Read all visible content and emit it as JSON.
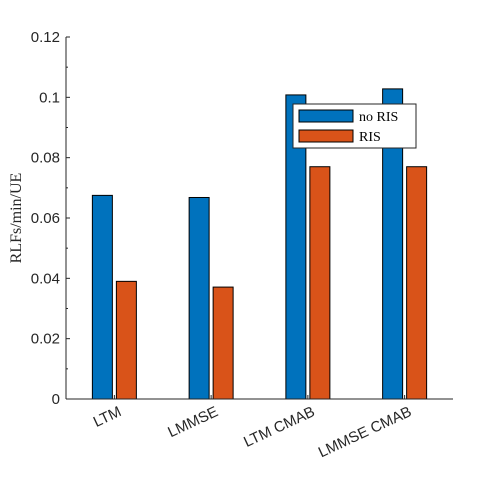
{
  "chart_data": {
    "type": "bar",
    "title": "",
    "xlabel": "",
    "ylabel": "RLFs/min/UE",
    "categories": [
      "LTM",
      "LMMSE",
      "LTM CMAB",
      "LMMSE CMAB"
    ],
    "series": [
      {
        "name": "no RIS",
        "values": [
          0.0675,
          0.0668,
          0.1008,
          0.1028
        ]
      },
      {
        "name": "RIS",
        "values": [
          0.039,
          0.0371,
          0.077,
          0.077
        ]
      }
    ],
    "ylim": [
      0,
      0.12
    ],
    "yticks": [
      0,
      0.02,
      0.04,
      0.06,
      0.08,
      0.1,
      0.12
    ],
    "ytick_labels": [
      "0",
      "0.02",
      "0.04",
      "0.06",
      "0.08",
      "0.1",
      "0.12"
    ],
    "grid": false,
    "legend_placement": "top-right",
    "x_tick_rotation_deg": -25,
    "colors": {
      "no RIS": "#0072BD",
      "RIS": "#D95319"
    }
  }
}
